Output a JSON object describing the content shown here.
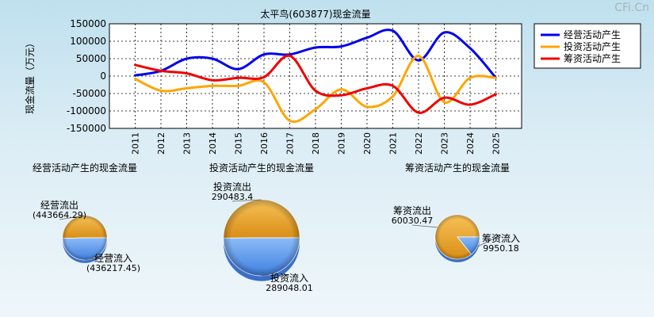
{
  "watermark": "CFi.Cn",
  "chart_data": [
    {
      "type": "line",
      "title": "太平鸟(603877)现金流量",
      "ylabel": "现金流量（万元）",
      "x": [
        "2011",
        "2012",
        "2013",
        "2014",
        "2015",
        "2016",
        "2017",
        "2018",
        "2019",
        "2020",
        "2021",
        "2022",
        "2023",
        "2024",
        "2025"
      ],
      "ylim": [
        -150000,
        150000
      ],
      "yticks": [
        150000,
        100000,
        50000,
        0,
        -50000,
        -100000,
        -150000
      ],
      "grid": true,
      "legend_position": "top-right",
      "series": [
        {
          "name": "经营活动产生",
          "color": "#0000ee",
          "values": [
            2000,
            15000,
            50000,
            50000,
            20000,
            62000,
            62000,
            82000,
            85000,
            110000,
            130000,
            45000,
            125000,
            80000,
            -5000
          ]
        },
        {
          "name": "投资活动产生",
          "color": "#ffa500",
          "values": [
            -8000,
            -42000,
            -35000,
            -28000,
            -28000,
            -18000,
            -128000,
            -95000,
            -38000,
            -88000,
            -58000,
            58000,
            -75000,
            -5000,
            -5000
          ]
        },
        {
          "name": "筹资活动产生",
          "color": "#ee0000",
          "values": [
            32000,
            15000,
            8000,
            -12000,
            -5000,
            -3000,
            58000,
            -42000,
            -55000,
            -35000,
            -28000,
            -105000,
            -62000,
            -82000,
            -52000
          ]
        }
      ]
    },
    {
      "type": "pie",
      "title": "经营活动产生的现金流量",
      "slices": [
        {
          "label": "经营流出",
          "value": 443664.29,
          "value_text": "(443664.29)",
          "color": "#f0a020"
        },
        {
          "label": "经营流入",
          "value": 436217.45,
          "value_text": "(436217.45)",
          "color": "#4d8fe8"
        }
      ]
    },
    {
      "type": "pie",
      "title": "投资活动产生的现金流量",
      "slices": [
        {
          "label": "投资流出",
          "value": 290483.4,
          "value_text": "290483.4",
          "color": "#f0a020"
        },
        {
          "label": "投资流入",
          "value": 289048.01,
          "value_text": "289048.01",
          "color": "#4d8fe8"
        }
      ]
    },
    {
      "type": "pie",
      "title": "筹资活动产生的现金流量",
      "slices": [
        {
          "label": "筹资流出",
          "value": 60030.47,
          "value_text": "60030.47",
          "color": "#f0a020"
        },
        {
          "label": "筹资流入",
          "value": 9950.18,
          "value_text": "9950.18",
          "color": "#4d8fe8"
        }
      ]
    }
  ]
}
